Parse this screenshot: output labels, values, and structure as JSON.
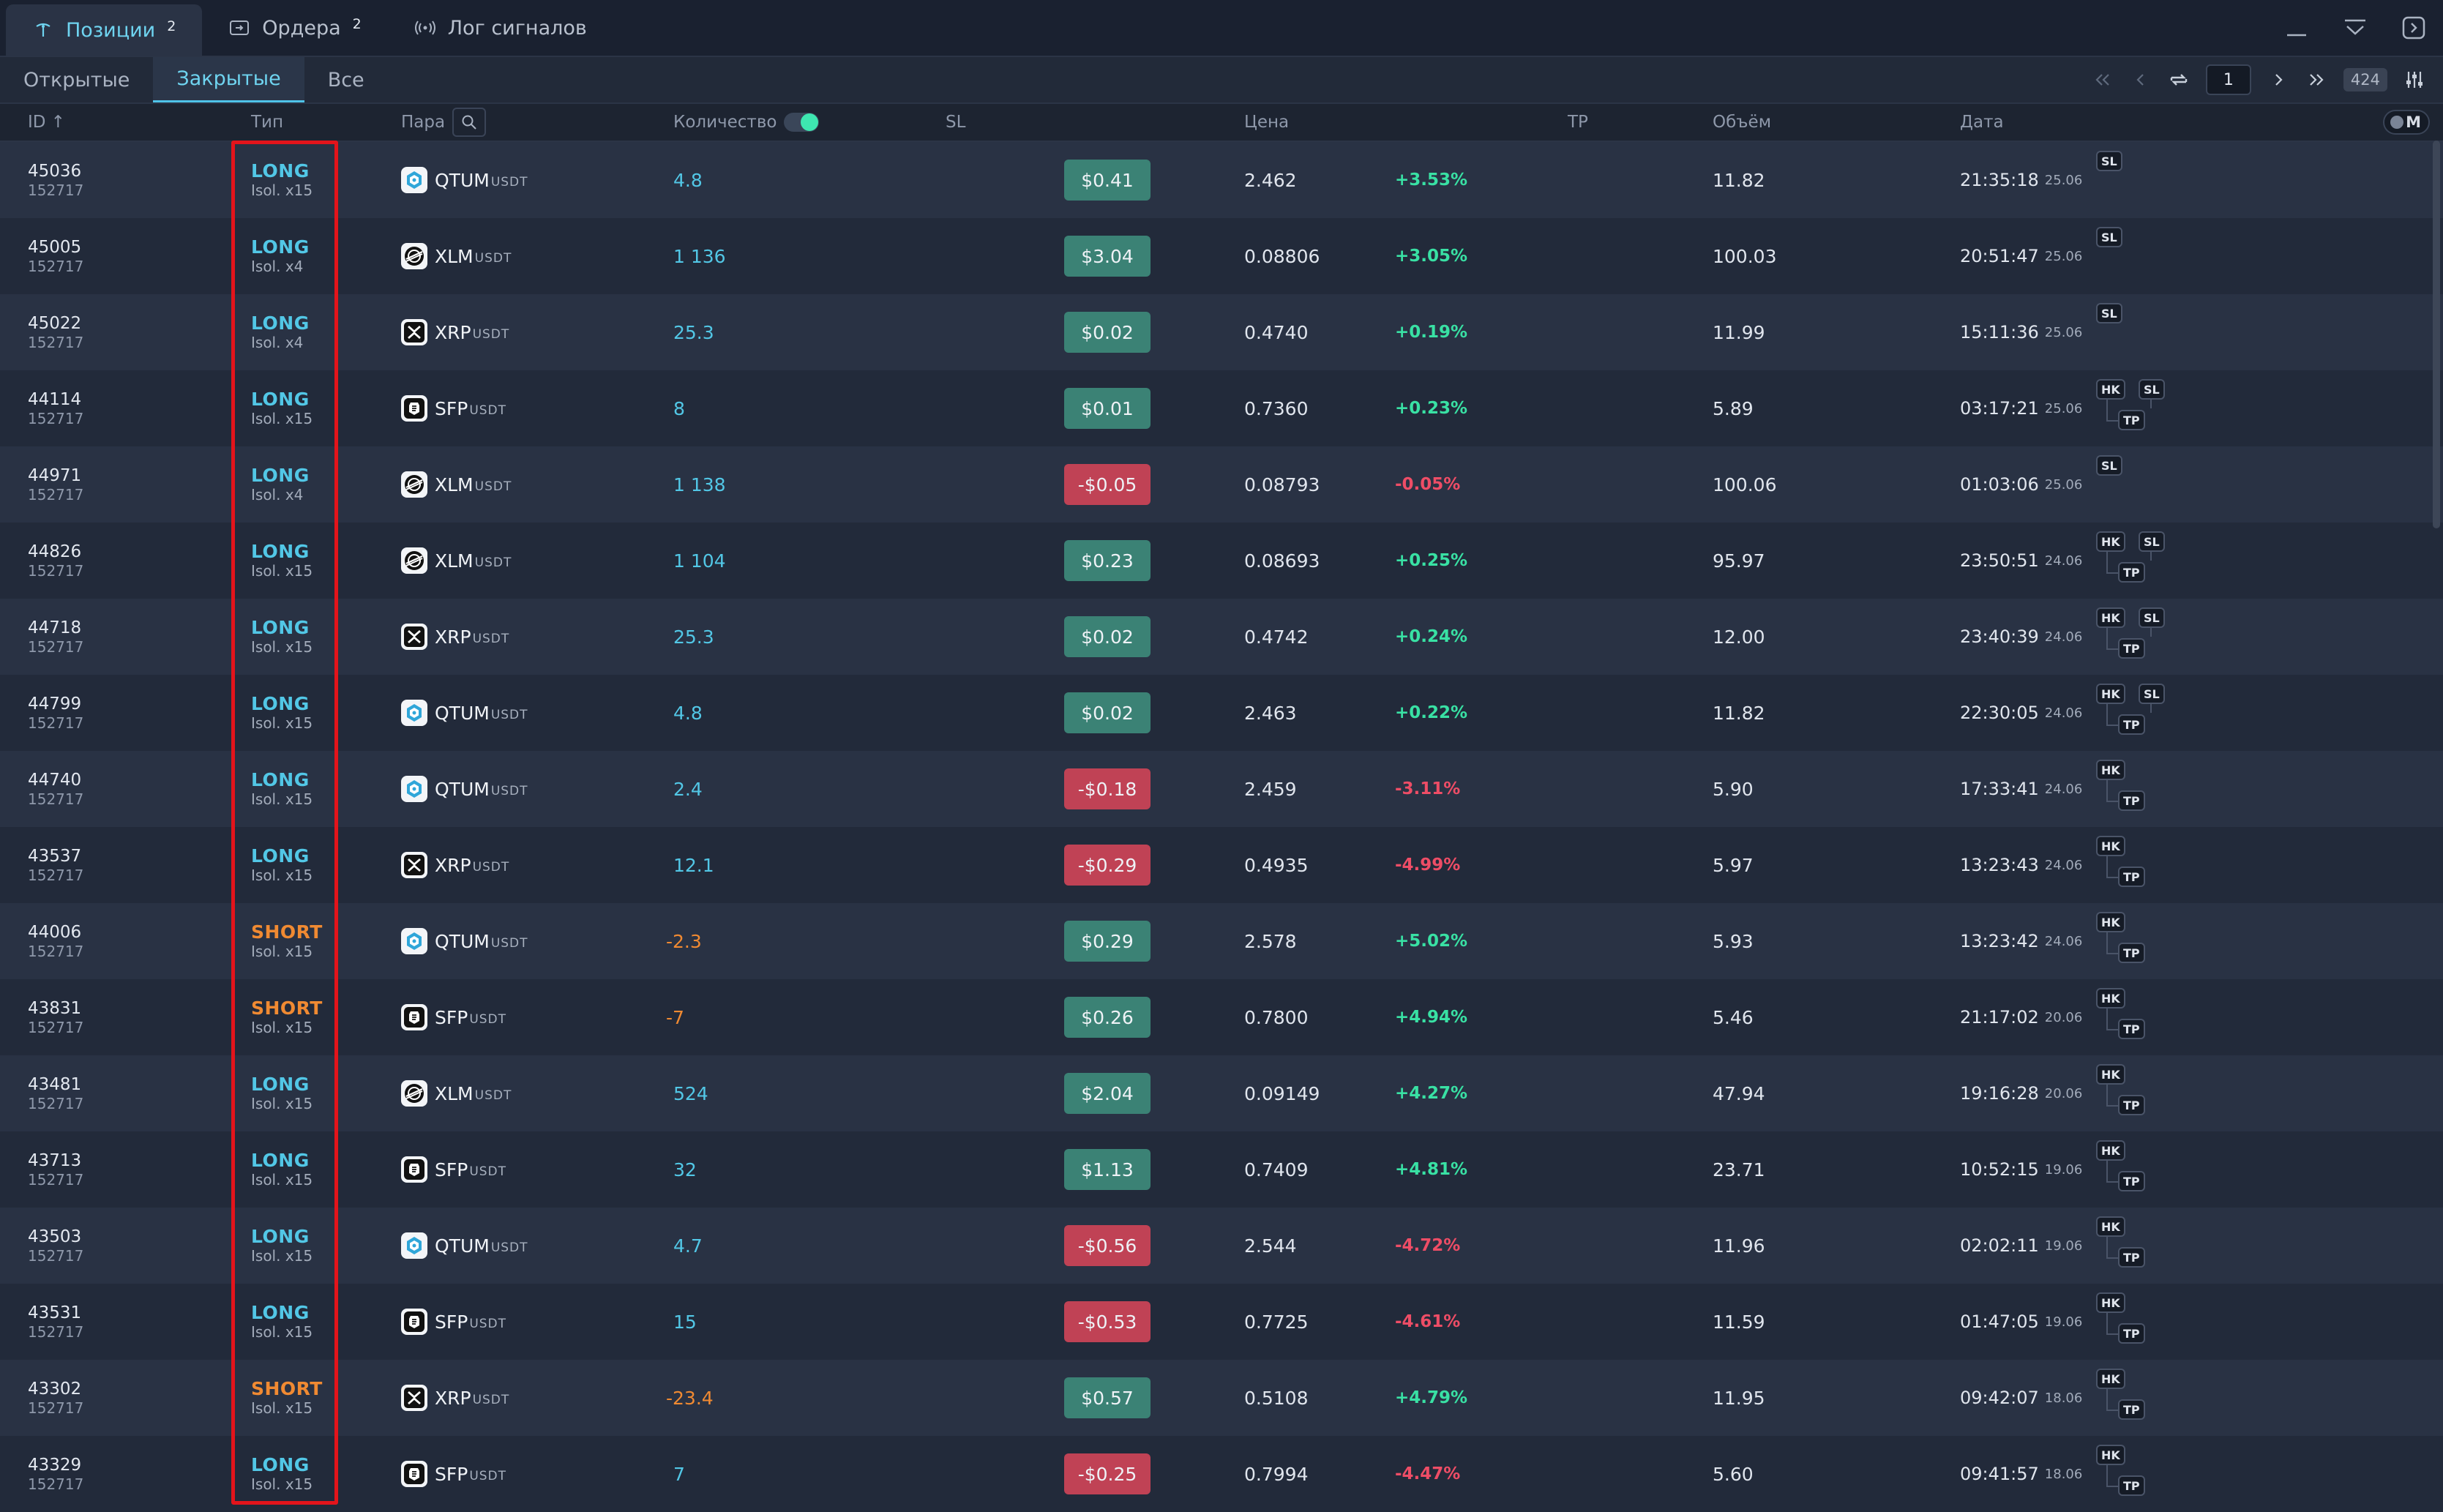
{
  "tabs": [
    {
      "label": "Позиции",
      "count": "2"
    },
    {
      "label": "Ордера",
      "count": "2"
    },
    {
      "label": "Лог сигналов",
      "count": ""
    }
  ],
  "subtabs": [
    "Открытые",
    "Закрытые",
    "Все"
  ],
  "pager": {
    "page": "1",
    "total": "424"
  },
  "columns": {
    "id": "ID ↑",
    "type": "Тип",
    "pair": "Пара",
    "qty": "Количество",
    "sl": "SL",
    "price": "Цена",
    "tp": "TP",
    "volume": "Объём",
    "date": "Дата",
    "mode": "M"
  },
  "quote": "USDT",
  "colors": {
    "long": "#52c7e6",
    "short": "#f08a32",
    "profit": "#3b8275",
    "loss": "#c04255",
    "accent": "#6fd4f0"
  },
  "rows": [
    {
      "id": "45036",
      "sub": "152717",
      "side": "LONG",
      "lev": "Isol. x15",
      "coin": "QTUM",
      "qty": "4.8",
      "pnl": "$0.41",
      "price": "2.462",
      "pct": "+3.53%",
      "vol": "11.82",
      "time": "21:35:18",
      "date": "25.06",
      "tags": "SL"
    },
    {
      "id": "45005",
      "sub": "152717",
      "side": "LONG",
      "lev": "Isol. x4",
      "coin": "XLM",
      "qty": "1 136",
      "pnl": "$3.04",
      "price": "0.08806",
      "pct": "+3.05%",
      "vol": "100.03",
      "time": "20:51:47",
      "date": "25.06",
      "tags": "SL"
    },
    {
      "id": "45022",
      "sub": "152717",
      "side": "LONG",
      "lev": "Isol. x4",
      "coin": "XRP",
      "qty": "25.3",
      "pnl": "$0.02",
      "price": "0.4740",
      "pct": "+0.19%",
      "vol": "11.99",
      "time": "15:11:36",
      "date": "25.06",
      "tags": "SL"
    },
    {
      "id": "44114",
      "sub": "152717",
      "side": "LONG",
      "lev": "Isol. x15",
      "coin": "SFP",
      "qty": "8",
      "pnl": "$0.01",
      "price": "0.7360",
      "pct": "+0.23%",
      "vol": "5.89",
      "time": "03:17:21",
      "date": "25.06",
      "tags": "HK-SL-TP"
    },
    {
      "id": "44971",
      "sub": "152717",
      "side": "LONG",
      "lev": "Isol. x4",
      "coin": "XLM",
      "qty": "1 138",
      "pnl": "-$0.05",
      "price": "0.08793",
      "pct": "-0.05%",
      "vol": "100.06",
      "time": "01:03:06",
      "date": "25.06",
      "tags": "SL"
    },
    {
      "id": "44826",
      "sub": "152717",
      "side": "LONG",
      "lev": "Isol. x15",
      "coin": "XLM",
      "qty": "1 104",
      "pnl": "$0.23",
      "price": "0.08693",
      "pct": "+0.25%",
      "vol": "95.97",
      "time": "23:50:51",
      "date": "24.06",
      "tags": "HK-SL-TP"
    },
    {
      "id": "44718",
      "sub": "152717",
      "side": "LONG",
      "lev": "Isol. x15",
      "coin": "XRP",
      "qty": "25.3",
      "pnl": "$0.02",
      "price": "0.4742",
      "pct": "+0.24%",
      "vol": "12.00",
      "time": "23:40:39",
      "date": "24.06",
      "tags": "HK-SL-TP"
    },
    {
      "id": "44799",
      "sub": "152717",
      "side": "LONG",
      "lev": "Isol. x15",
      "coin": "QTUM",
      "qty": "4.8",
      "pnl": "$0.02",
      "price": "2.463",
      "pct": "+0.22%",
      "vol": "11.82",
      "time": "22:30:05",
      "date": "24.06",
      "tags": "HK-SL-TP"
    },
    {
      "id": "44740",
      "sub": "152717",
      "side": "LONG",
      "lev": "Isol. x15",
      "coin": "QTUM",
      "qty": "2.4",
      "pnl": "-$0.18",
      "price": "2.459",
      "pct": "-3.11%",
      "vol": "5.90",
      "time": "17:33:41",
      "date": "24.06",
      "tags": "HK-TP"
    },
    {
      "id": "43537",
      "sub": "152717",
      "side": "LONG",
      "lev": "Isol. x15",
      "coin": "XRP",
      "qty": "12.1",
      "pnl": "-$0.29",
      "price": "0.4935",
      "pct": "-4.99%",
      "vol": "5.97",
      "time": "13:23:43",
      "date": "24.06",
      "tags": "HK-TP"
    },
    {
      "id": "44006",
      "sub": "152717",
      "side": "SHORT",
      "lev": "Isol. x15",
      "coin": "QTUM",
      "qty": "-2.3",
      "pnl": "$0.29",
      "price": "2.578",
      "pct": "+5.02%",
      "vol": "5.93",
      "time": "13:23:42",
      "date": "24.06",
      "tags": "HK-TP"
    },
    {
      "id": "43831",
      "sub": "152717",
      "side": "SHORT",
      "lev": "Isol. x15",
      "coin": "SFP",
      "qty": "-7",
      "pnl": "$0.26",
      "price": "0.7800",
      "pct": "+4.94%",
      "vol": "5.46",
      "time": "21:17:02",
      "date": "20.06",
      "tags": "HK-TP"
    },
    {
      "id": "43481",
      "sub": "152717",
      "side": "LONG",
      "lev": "Isol. x15",
      "coin": "XLM",
      "qty": "524",
      "pnl": "$2.04",
      "price": "0.09149",
      "pct": "+4.27%",
      "vol": "47.94",
      "time": "19:16:28",
      "date": "20.06",
      "tags": "HK-TP"
    },
    {
      "id": "43713",
      "sub": "152717",
      "side": "LONG",
      "lev": "Isol. x15",
      "coin": "SFP",
      "qty": "32",
      "pnl": "$1.13",
      "price": "0.7409",
      "pct": "+4.81%",
      "vol": "23.71",
      "time": "10:52:15",
      "date": "19.06",
      "tags": "HK-TP"
    },
    {
      "id": "43503",
      "sub": "152717",
      "side": "LONG",
      "lev": "Isol. x15",
      "coin": "QTUM",
      "qty": "4.7",
      "pnl": "-$0.56",
      "price": "2.544",
      "pct": "-4.72%",
      "vol": "11.96",
      "time": "02:02:11",
      "date": "19.06",
      "tags": "HK-TP"
    },
    {
      "id": "43531",
      "sub": "152717",
      "side": "LONG",
      "lev": "Isol. x15",
      "coin": "SFP",
      "qty": "15",
      "pnl": "-$0.53",
      "price": "0.7725",
      "pct": "-4.61%",
      "vol": "11.59",
      "time": "01:47:05",
      "date": "19.06",
      "tags": "HK-TP"
    },
    {
      "id": "43302",
      "sub": "152717",
      "side": "SHORT",
      "lev": "Isol. x15",
      "coin": "XRP",
      "qty": "-23.4",
      "pnl": "$0.57",
      "price": "0.5108",
      "pct": "+4.79%",
      "vol": "11.95",
      "time": "09:42:07",
      "date": "18.06",
      "tags": "HK-TP"
    },
    {
      "id": "43329",
      "sub": "152717",
      "side": "LONG",
      "lev": "Isol. x15",
      "coin": "SFP",
      "qty": "7",
      "pnl": "-$0.25",
      "price": "0.7994",
      "pct": "-4.47%",
      "vol": "5.60",
      "time": "09:41:57",
      "date": "18.06",
      "tags": "HK-TP"
    }
  ]
}
